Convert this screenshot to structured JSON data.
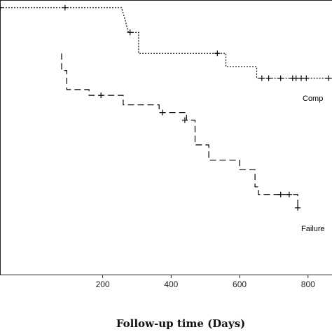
{
  "chart_data": {
    "type": "line",
    "subtype": "kaplan-meier step",
    "xlabel": "Follow-up time (Days)",
    "ylabel": "",
    "title": "",
    "xlim": [
      -100,
      870
    ],
    "ylim": [
      0.3,
      1.02
    ],
    "xticks": [
      200,
      400,
      600,
      800
    ],
    "grid": false,
    "series": [
      {
        "name": "Comp",
        "line_style": "dotted",
        "color": "#000000",
        "steps": [
          [
            -100,
            1.0
          ],
          [
            255,
            1.0
          ],
          [
            265,
            0.97
          ],
          [
            275,
            0.935
          ],
          [
            305,
            0.935
          ],
          [
            305,
            0.88
          ],
          [
            560,
            0.88
          ],
          [
            560,
            0.845
          ],
          [
            650,
            0.845
          ],
          [
            650,
            0.815
          ],
          [
            870,
            0.815
          ]
        ],
        "censored": [
          [
            -100,
            1.0
          ],
          [
            90,
            1.0
          ],
          [
            280,
            0.935
          ],
          [
            535,
            0.88
          ],
          [
            665,
            0.815
          ],
          [
            685,
            0.815
          ],
          [
            720,
            0.815
          ],
          [
            755,
            0.815
          ],
          [
            765,
            0.815
          ],
          [
            780,
            0.815
          ],
          [
            795,
            0.815
          ],
          [
            860,
            0.815
          ]
        ]
      },
      {
        "name": "Failure",
        "line_style": "dashed",
        "color": "#000000",
        "steps": [
          [
            80,
            0.88
          ],
          [
            80,
            0.835
          ],
          [
            95,
            0.835
          ],
          [
            95,
            0.785
          ],
          [
            160,
            0.785
          ],
          [
            160,
            0.77
          ],
          [
            260,
            0.77
          ],
          [
            260,
            0.745
          ],
          [
            365,
            0.745
          ],
          [
            365,
            0.725
          ],
          [
            445,
            0.725
          ],
          [
            445,
            0.705
          ],
          [
            470,
            0.705
          ],
          [
            470,
            0.64
          ],
          [
            510,
            0.64
          ],
          [
            510,
            0.6
          ],
          [
            600,
            0.6
          ],
          [
            600,
            0.575
          ],
          [
            645,
            0.575
          ],
          [
            645,
            0.53
          ],
          [
            655,
            0.53
          ],
          [
            655,
            0.51
          ],
          [
            770,
            0.51
          ],
          [
            770,
            0.47
          ]
        ],
        "censored": [
          [
            195,
            0.77
          ],
          [
            375,
            0.725
          ],
          [
            440,
            0.705
          ],
          [
            720,
            0.51
          ],
          [
            745,
            0.51
          ],
          [
            770,
            0.475
          ]
        ]
      }
    ]
  }
}
